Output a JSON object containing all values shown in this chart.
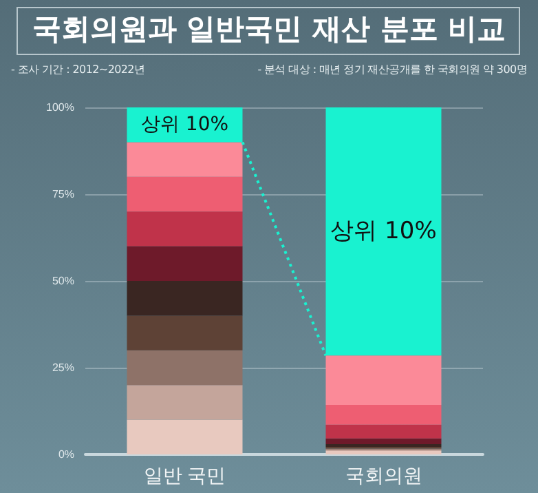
{
  "chart_data": {
    "type": "bar",
    "stacked": true,
    "title": "국회의원과 일반국민 재산 분포 비교",
    "subtitle": "- 조사 기간 : 2012~2022년",
    "annotations": [
      "- 분석 대상 : 매년 정기 재산공개를 한 국회의원 약 300명"
    ],
    "categories": [
      "일반 국민",
      "국회의원"
    ],
    "series": [
      {
        "color": "#e8c9bf",
        "values": [
          10,
          1.0
        ]
      },
      {
        "color": "#c4a59b",
        "values": [
          10,
          0.4
        ]
      },
      {
        "color": "#8e7268",
        "values": [
          10,
          0.3
        ]
      },
      {
        "color": "#5e4236",
        "values": [
          10,
          0.5
        ]
      },
      {
        "color": "#3a2622",
        "values": [
          10,
          0.8
        ]
      },
      {
        "color": "#6e1a2a",
        "values": [
          10,
          1.6
        ]
      },
      {
        "color": "#c0334a",
        "values": [
          10,
          4.0
        ]
      },
      {
        "color": "#ee5e72",
        "values": [
          10,
          5.7
        ]
      },
      {
        "color": "#fb8a98",
        "values": [
          10,
          14.2
        ]
      },
      {
        "color": "#19f2d0",
        "values": [
          10,
          71.5
        ],
        "value_labels": [
          "상위 10%",
          "상위 10%"
        ]
      }
    ],
    "ylim": [
      0,
      100
    ],
    "yticks": [
      {
        "value": 0,
        "label": "0%"
      },
      {
        "value": 25,
        "label": "25%"
      },
      {
        "value": 50,
        "label": "50%"
      },
      {
        "value": 75,
        "label": "75%"
      },
      {
        "value": 100,
        "label": "100%"
      }
    ],
    "grid": "y"
  }
}
